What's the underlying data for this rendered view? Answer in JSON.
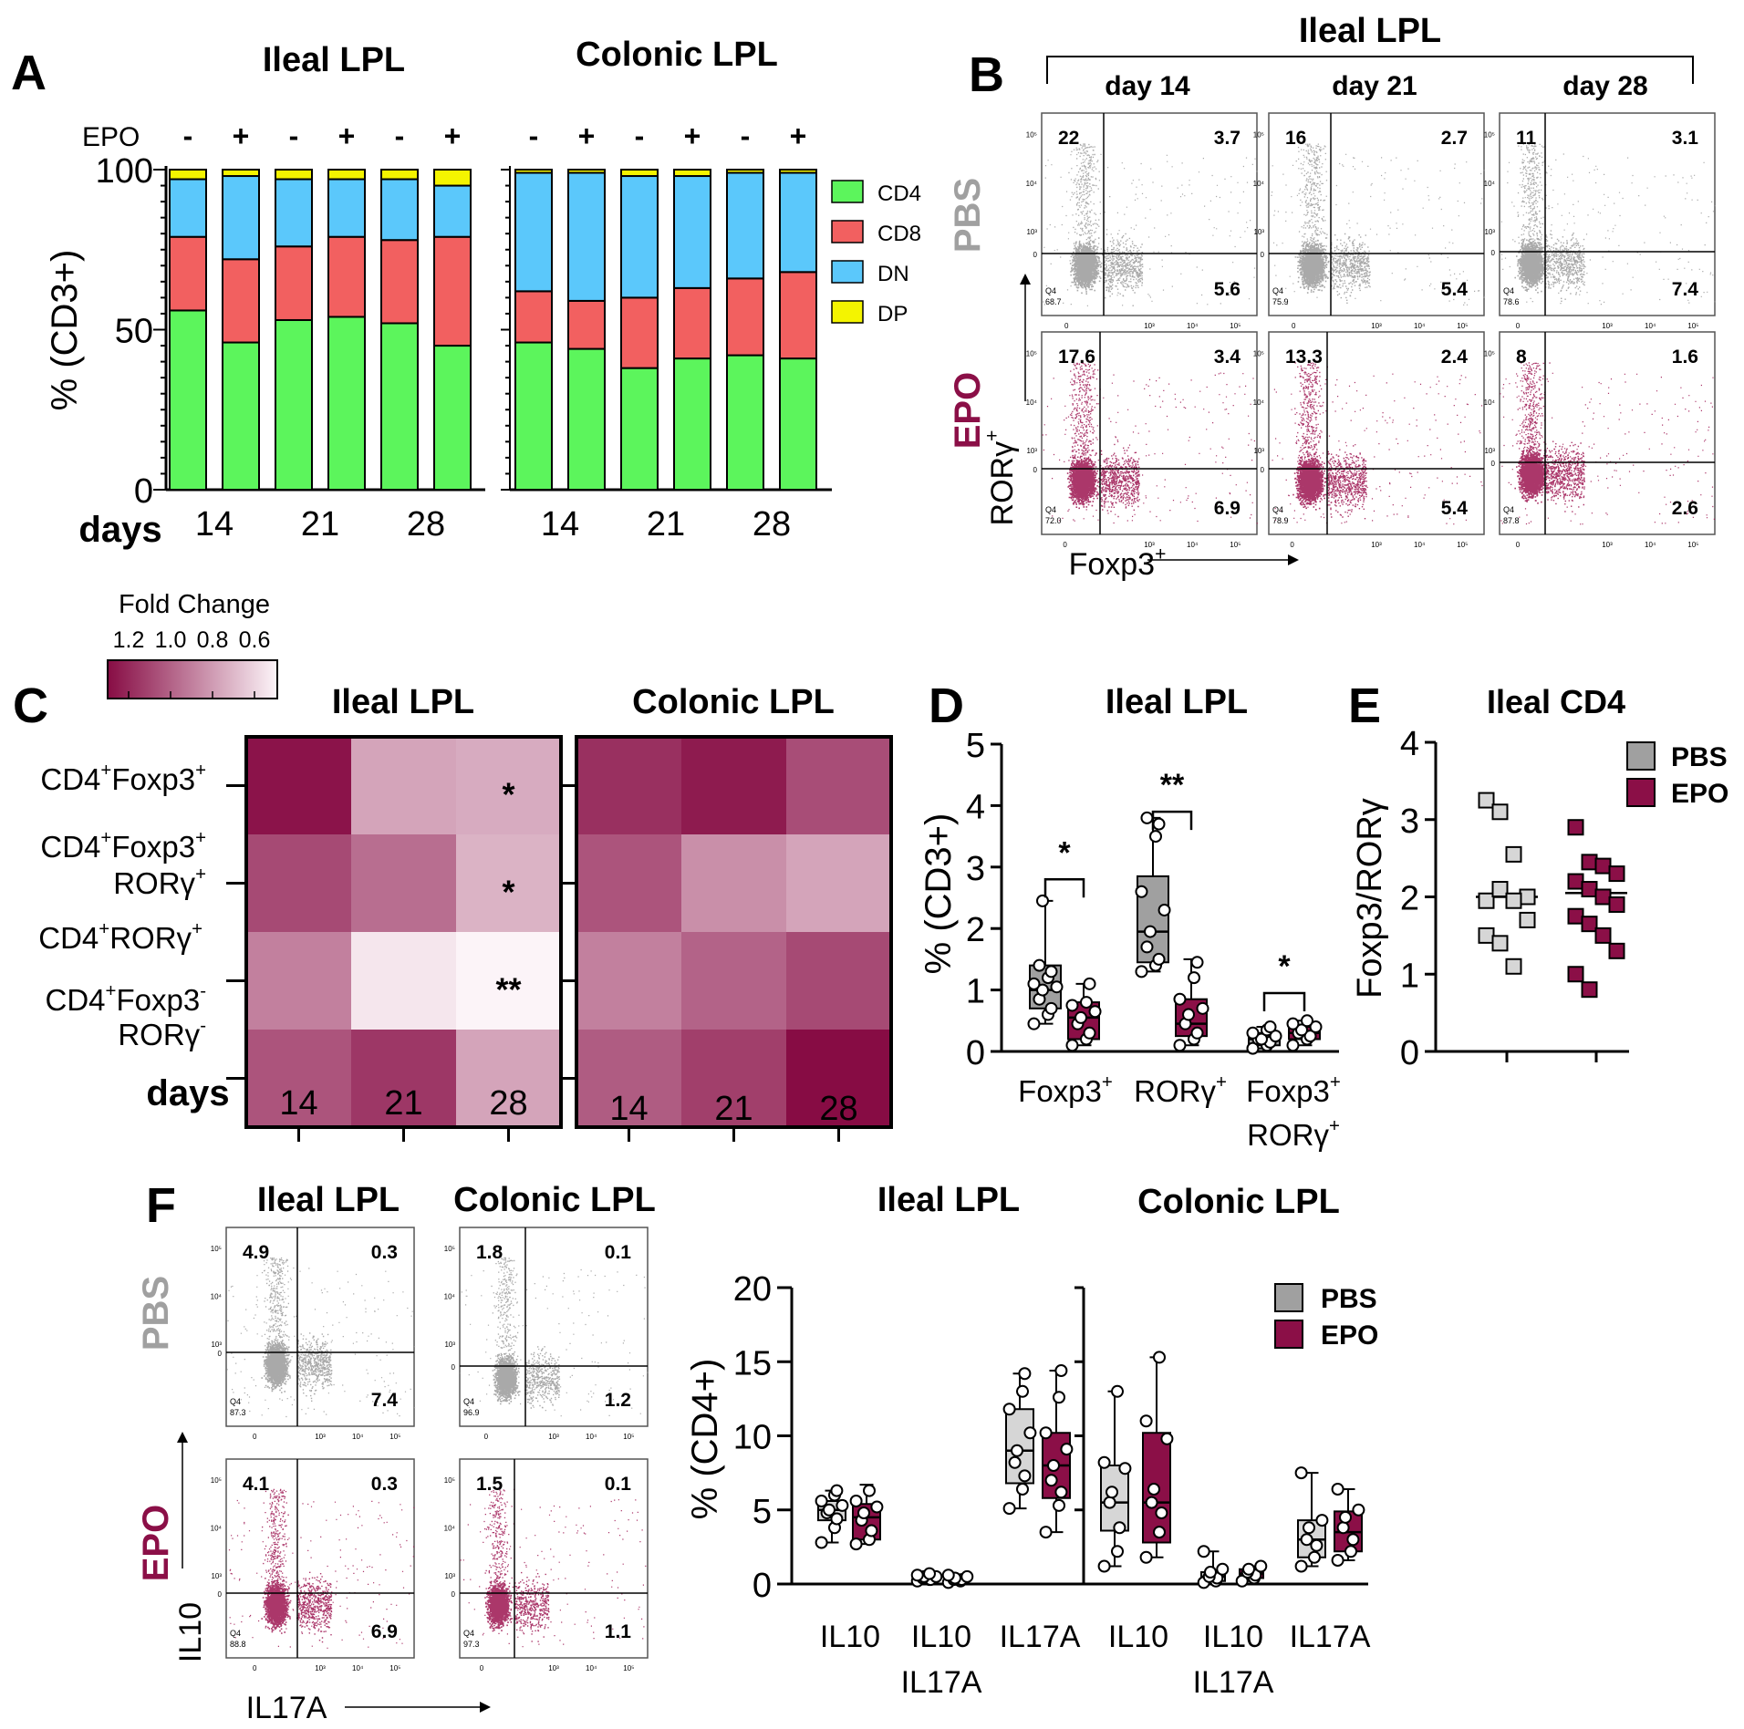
{
  "colors": {
    "cd4": "#5cf55c",
    "cd8": "#f26060",
    "dn": "#5bc8fb",
    "dp": "#f4f400",
    "epo": "#8b0f47",
    "pbs": "#a0a0a0",
    "pbs_fill": "#d6d6d6",
    "flow_pbs": "#9a9a9a",
    "flow_epo": "#9c1450"
  },
  "panel_letters": [
    "A",
    "B",
    "C",
    "D",
    "E",
    "F"
  ],
  "chart_data": [
    {
      "id": "A",
      "type": "bar",
      "stacked": true,
      "title_left": "Ileal LPL",
      "title_right": "Colonic LPL",
      "ylabel": "% (CD3+)",
      "xlabel": "days",
      "ylim": [
        0,
        100
      ],
      "yticks": [
        "0",
        "50",
        "100"
      ],
      "epo_label": "EPO",
      "epo_signs": [
        "-",
        "+",
        "-",
        "+",
        "-",
        "+"
      ],
      "day_labels": [
        "14",
        "21",
        "28"
      ],
      "legend": [
        "CD4",
        "CD8",
        "DN",
        "DP"
      ],
      "groups": [
        {
          "name": "Ileal LPL",
          "series": [
            {
              "name": "CD4",
              "values": [
                56,
                46,
                53,
                54,
                52,
                45
              ]
            },
            {
              "name": "CD8",
              "values": [
                23,
                26,
                23,
                25,
                26,
                34
              ]
            },
            {
              "name": "DN",
              "values": [
                18,
                26,
                21,
                18,
                19,
                16
              ]
            },
            {
              "name": "DP",
              "values": [
                3,
                2,
                3,
                3,
                3,
                5
              ]
            }
          ]
        },
        {
          "name": "Colonic LPL",
          "series": [
            {
              "name": "CD4",
              "values": [
                46,
                44,
                38,
                41,
                42,
                41
              ]
            },
            {
              "name": "CD8",
              "values": [
                16,
                15,
                22,
                22,
                24,
                27
              ]
            },
            {
              "name": "DN",
              "values": [
                37,
                40,
                38,
                35,
                33,
                31
              ]
            },
            {
              "name": "DP",
              "values": [
                1,
                1,
                2,
                2,
                1,
                1
              ]
            }
          ]
        }
      ]
    },
    {
      "id": "B",
      "type": "flow-cytometry",
      "title": "Ileal LPL",
      "columns": [
        "day 14",
        "day 21",
        "day 28"
      ],
      "row_labels": [
        "PBS",
        "EPO"
      ],
      "yaxis_label": "RORγ",
      "yaxis_sup": "+",
      "xaxis_label": "Foxp3",
      "xaxis_sup": "+",
      "quadrants": [
        [
          [
            "22",
            "3.7",
            "5.6",
            "68.7"
          ],
          [
            "16",
            "2.7",
            "5.4",
            "75.9"
          ],
          [
            "11",
            "3.1",
            "7.4",
            "78.6"
          ]
        ],
        [
          [
            "17.6",
            "3.4",
            "6.9",
            "72.0"
          ],
          [
            "13.3",
            "2.4",
            "5.4",
            "78.9"
          ],
          [
            "8",
            "1.6",
            "2.6",
            "87.8"
          ]
        ]
      ],
      "q4_label": "Q4",
      "axis_ticks_y": [
        "10⁵",
        "10⁴",
        "10³",
        "0"
      ],
      "axis_ticks_x": [
        "0",
        "10³",
        "10⁴",
        "10⁵"
      ]
    },
    {
      "id": "C",
      "type": "heatmap",
      "legend_title": "Fold Change",
      "legend_ticks": [
        "1.2",
        "1.0",
        "0.8",
        "0.6"
      ],
      "title_left": "Ileal LPL",
      "title_right": "Colonic LPL",
      "xlabel": "days",
      "days": [
        "14",
        "21",
        "28"
      ],
      "rows": [
        {
          "base": "CD4",
          "sup1": "+",
          "mid": "Foxp3",
          "sup2": "+",
          "line2": ""
        },
        {
          "base": "CD4",
          "sup1": "+",
          "mid": "Foxp3",
          "sup2": "+",
          "line2": "RORγ",
          "sup3": "+"
        },
        {
          "base": "CD4",
          "sup1": "+",
          "mid": "RORγ",
          "sup2": "+",
          "line2": ""
        },
        {
          "base": "CD4",
          "sup1": "+",
          "mid": "Foxp3",
          "sup2": "-",
          "line2": "RORγ",
          "sup3": "-"
        }
      ],
      "ileal": [
        [
          1.2,
          0.8,
          0.78
        ],
        [
          1.05,
          0.95,
          0.76
        ],
        [
          0.9,
          0.62,
          0.58
        ],
        [
          1.02,
          1.1,
          0.8
        ]
      ],
      "colonic": [
        [
          1.12,
          1.18,
          1.04
        ],
        [
          1.02,
          0.86,
          0.8
        ],
        [
          0.9,
          0.98,
          1.05
        ],
        [
          1.0,
          1.08,
          1.22
        ]
      ],
      "stars": [
        [
          "",
          "",
          "*"
        ],
        [
          "",
          "",
          "*"
        ],
        [
          "",
          "",
          "**"
        ],
        [
          "",
          "",
          ""
        ]
      ]
    },
    {
      "id": "D",
      "type": "box",
      "title": "Ileal LPL",
      "ylabel": "% (CD3+)",
      "ylim": [
        0,
        5
      ],
      "yticks": [
        "0",
        "1",
        "2",
        "3",
        "4",
        "5"
      ],
      "categories": [
        {
          "l1": "Foxp3",
          "s1": "+",
          "l2": "",
          "s2": ""
        },
        {
          "l1": "RORγ",
          "s1": "+",
          "l2": "",
          "s2": ""
        },
        {
          "l1": "Foxp3",
          "s1": "+",
          "l2": "RORγ",
          "s2": "+"
        }
      ],
      "series": [
        {
          "name": "PBS",
          "boxes": [
            {
              "min": 0.45,
              "q1": 0.7,
              "med": 1.0,
              "q3": 1.4,
              "max": 2.45,
              "pts": [
                0.45,
                0.6,
                0.7,
                0.85,
                1.0,
                1.05,
                1.1,
                1.2,
                1.3,
                1.4,
                2.45
              ]
            },
            {
              "min": 1.3,
              "q1": 1.45,
              "med": 1.95,
              "q3": 2.85,
              "max": 3.8,
              "pts": [
                1.3,
                1.4,
                1.5,
                1.7,
                1.95,
                2.3,
                2.6,
                3.5,
                3.7,
                3.8
              ]
            },
            {
              "min": 0.05,
              "q1": 0.1,
              "med": 0.2,
              "q3": 0.3,
              "max": 0.4,
              "pts": [
                0.05,
                0.1,
                0.15,
                0.2,
                0.2,
                0.25,
                0.3,
                0.35,
                0.4
              ]
            }
          ]
        },
        {
          "name": "EPO",
          "boxes": [
            {
              "min": 0.1,
              "q1": 0.2,
              "med": 0.55,
              "q3": 0.8,
              "max": 1.1,
              "pts": [
                0.1,
                0.2,
                0.3,
                0.45,
                0.55,
                0.65,
                0.75,
                0.8,
                1.1
              ]
            },
            {
              "min": 0.1,
              "q1": 0.25,
              "med": 0.45,
              "q3": 0.85,
              "max": 1.5,
              "pts": [
                0.1,
                0.2,
                0.3,
                0.45,
                0.6,
                0.7,
                0.85,
                1.2,
                1.45
              ]
            },
            {
              "min": 0.1,
              "q1": 0.2,
              "med": 0.3,
              "q3": 0.4,
              "max": 0.5,
              "pts": [
                0.1,
                0.2,
                0.25,
                0.3,
                0.35,
                0.4,
                0.45,
                0.5
              ]
            }
          ]
        }
      ],
      "sig": [
        "*",
        "**",
        "*"
      ]
    },
    {
      "id": "E",
      "type": "scatter",
      "title": "Ileal CD4",
      "ylabel": "Foxp3/RORγ",
      "ylim": [
        0,
        4
      ],
      "yticks": [
        "0",
        "1",
        "2",
        "3",
        "4"
      ],
      "legend": [
        "PBS",
        "EPO"
      ],
      "series": [
        {
          "name": "PBS",
          "mean": 2.0,
          "values": [
            3.25,
            3.1,
            2.55,
            2.0,
            1.95,
            2.1,
            1.95,
            1.7,
            1.5,
            1.4,
            1.1
          ]
        },
        {
          "name": "EPO",
          "mean": 2.05,
          "values": [
            2.9,
            2.45,
            2.4,
            2.3,
            2.2,
            2.1,
            2.0,
            1.9,
            1.75,
            1.65,
            1.5,
            1.3,
            1.0,
            0.8
          ]
        }
      ]
    },
    {
      "id": "F-flow",
      "type": "flow-cytometry",
      "titles": [
        "Ileal LPL",
        "Colonic LPL"
      ],
      "row_labels": [
        "PBS",
        "EPO"
      ],
      "yaxis_label": "IL10",
      "xaxis_label": "IL17A",
      "quadrants": [
        [
          [
            "4.9",
            "0.3",
            "7.4",
            "87.3"
          ],
          [
            "1.8",
            "0.1",
            "1.2",
            "96.9"
          ]
        ],
        [
          [
            "4.1",
            "0.3",
            "6.9",
            "88.8"
          ],
          [
            "1.5",
            "0.1",
            "1.1",
            "97.3"
          ]
        ]
      ]
    },
    {
      "id": "F-box",
      "type": "box",
      "title_left": "Ileal LPL",
      "title_right": "Colonic LPL",
      "ylabel": "% (CD4+)",
      "ylim": [
        0,
        20
      ],
      "yticks": [
        "0",
        "5",
        "10",
        "15",
        "20"
      ],
      "legend": [
        "PBS",
        "EPO"
      ],
      "categories": [
        {
          "l1": "IL10",
          "l2": ""
        },
        {
          "l1": "IL10",
          "l2": "IL17A"
        },
        {
          "l1": "IL17A",
          "l2": ""
        },
        {
          "l1": "IL10",
          "l2": ""
        },
        {
          "l1": "IL10",
          "l2": "IL17A"
        },
        {
          "l1": "IL17A",
          "l2": ""
        }
      ],
      "series": [
        {
          "name": "PBS",
          "boxes": [
            {
              "min": 2.8,
              "q1": 4.3,
              "med": 5.0,
              "q3": 5.6,
              "max": 6.3,
              "pts": [
                2.8,
                3.8,
                4.4,
                4.8,
                5.0,
                5.3,
                5.6,
                6.0,
                6.3
              ]
            },
            {
              "min": 0.2,
              "q1": 0.3,
              "med": 0.4,
              "q3": 0.5,
              "max": 0.7,
              "pts": [
                0.2,
                0.3,
                0.3,
                0.4,
                0.5,
                0.5,
                0.6,
                0.7
              ]
            },
            {
              "min": 5.1,
              "q1": 6.8,
              "med": 9.0,
              "q3": 11.8,
              "max": 14.2,
              "pts": [
                5.1,
                6.4,
                7.3,
                8.2,
                9.0,
                10.2,
                11.8,
                13.0,
                14.2
              ]
            },
            {
              "min": 1.2,
              "q1": 3.6,
              "med": 5.5,
              "q3": 8.0,
              "max": 13.0,
              "pts": [
                1.2,
                2.2,
                3.8,
                5.5,
                6.2,
                7.8,
                8.2,
                13.0
              ]
            },
            {
              "min": 0.1,
              "q1": 0.2,
              "med": 0.5,
              "q3": 0.8,
              "max": 2.2,
              "pts": [
                0.1,
                0.2,
                0.4,
                0.5,
                0.8,
                1.0,
                2.2
              ]
            },
            {
              "min": 1.2,
              "q1": 1.8,
              "med": 3.0,
              "q3": 4.3,
              "max": 7.5,
              "pts": [
                1.2,
                1.8,
                2.6,
                3.0,
                3.8,
                4.3,
                7.5
              ]
            }
          ]
        },
        {
          "name": "EPO",
          "boxes": [
            {
              "min": 2.7,
              "q1": 3.0,
              "med": 4.5,
              "q3": 5.4,
              "max": 6.7,
              "pts": [
                2.7,
                3.0,
                3.6,
                4.3,
                4.8,
                5.2,
                5.6,
                6.3
              ]
            },
            {
              "min": 0.1,
              "q1": 0.2,
              "med": 0.3,
              "q3": 0.4,
              "max": 0.6,
              "pts": [
                0.1,
                0.2,
                0.3,
                0.3,
                0.4,
                0.5,
                0.6
              ]
            },
            {
              "min": 3.5,
              "q1": 5.8,
              "med": 8.0,
              "q3": 10.2,
              "max": 14.4,
              "pts": [
                3.5,
                5.3,
                6.2,
                7.0,
                8.0,
                9.1,
                10.2,
                12.6,
                14.4
              ]
            },
            {
              "min": 1.8,
              "q1": 2.8,
              "med": 5.5,
              "q3": 10.2,
              "max": 15.3,
              "pts": [
                1.8,
                3.5,
                4.8,
                5.5,
                6.4,
                9.8,
                11.0,
                15.3
              ]
            },
            {
              "min": 0.2,
              "q1": 0.4,
              "med": 0.7,
              "q3": 1.0,
              "max": 1.2,
              "pts": [
                0.2,
                0.4,
                0.6,
                0.8,
                1.0,
                1.2
              ]
            },
            {
              "min": 1.6,
              "q1": 2.2,
              "med": 3.5,
              "q3": 4.9,
              "max": 6.4,
              "pts": [
                1.6,
                2.2,
                3.0,
                3.8,
                4.5,
                5.0,
                6.4
              ]
            }
          ]
        }
      ]
    }
  ]
}
